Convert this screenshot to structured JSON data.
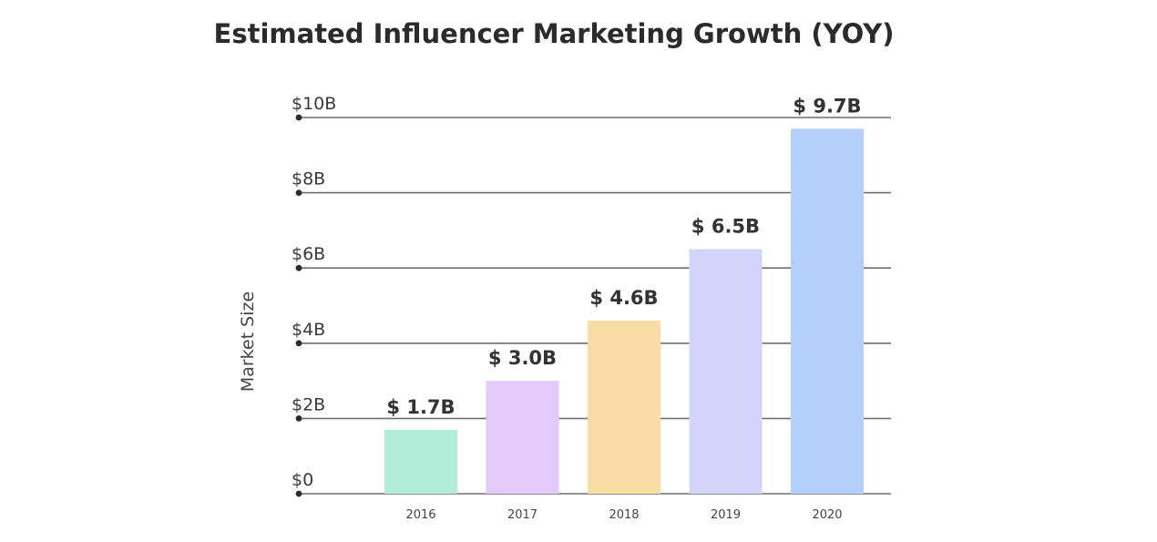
{
  "chart_data": {
    "type": "bar",
    "title": "Estimated Influencer Marketing Growth (YOY)",
    "ylabel": "Market Size",
    "xlabel": "",
    "ylim": [
      0,
      10
    ],
    "y_ticks": [
      {
        "value": 0,
        "label": "$0"
      },
      {
        "value": 2,
        "label": "$2B"
      },
      {
        "value": 4,
        "label": "$4B"
      },
      {
        "value": 6,
        "label": "$6B"
      },
      {
        "value": 8,
        "label": "$8B"
      },
      {
        "value": 10,
        "label": "$10B"
      }
    ],
    "categories": [
      "2016",
      "2017",
      "2018",
      "2019",
      "2020"
    ],
    "values": [
      1.7,
      3.0,
      4.6,
      6.5,
      9.7
    ],
    "data_labels": [
      "$ 1.7B",
      "$ 3.0B",
      "$ 4.6B",
      "$ 6.5B",
      "$ 9.7B"
    ],
    "colors": [
      "#b1ecd9",
      "#e2cbfa",
      "#fadda3",
      "#d3d4fb",
      "#b3cffb"
    ],
    "grid": true,
    "legend": "none"
  }
}
